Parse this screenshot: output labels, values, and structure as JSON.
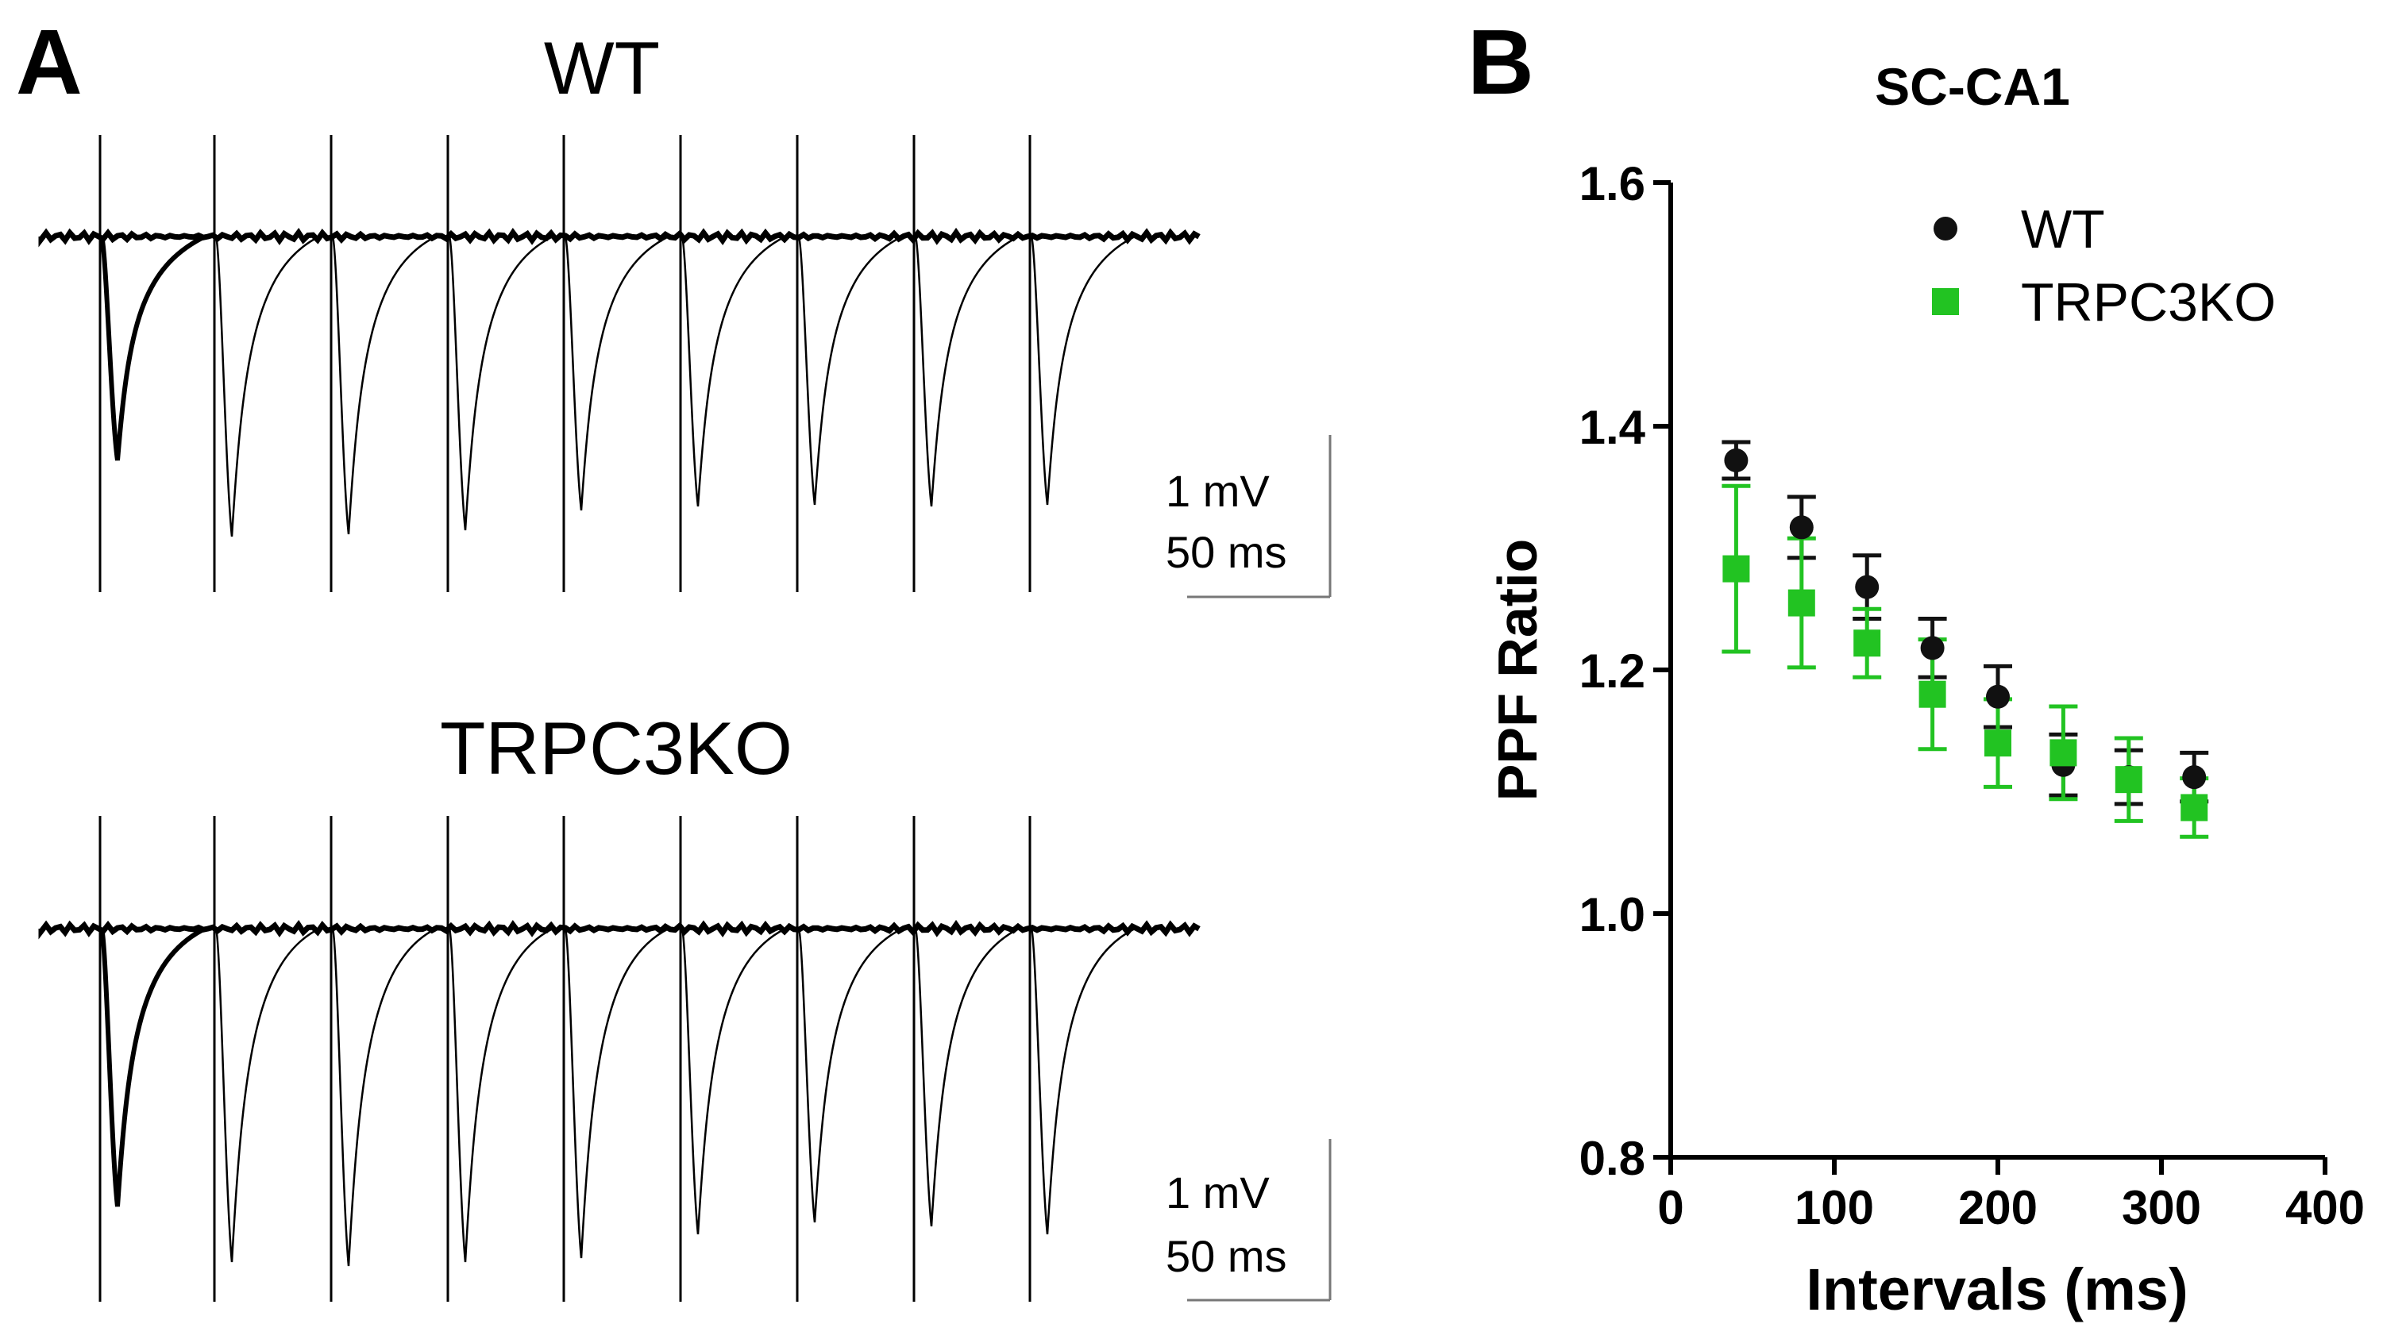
{
  "panelA": {
    "letter": "A",
    "traces": [
      {
        "title": "WT",
        "scalebar": {
          "amplitude": "1 mV",
          "time": "50 ms"
        }
      },
      {
        "title": "TRPC3KO",
        "scalebar": {
          "amplitude": "1 mV",
          "time": "50 ms"
        }
      }
    ]
  },
  "panelB": {
    "letter": "B"
  },
  "colors": {
    "wt": "#111111",
    "ko": "#22c322"
  },
  "chart_data": {
    "type": "scatter",
    "title": "SC-CA1",
    "xlabel": "Intervals (ms)",
    "ylabel": "PPF Ratio",
    "xlim": [
      0,
      400
    ],
    "ylim": [
      0.8,
      1.6
    ],
    "xticks": [
      "0",
      "100",
      "200",
      "300",
      "400"
    ],
    "yticks": [
      "0.8",
      "1.0",
      "1.2",
      "1.4",
      "1.6"
    ],
    "legend_position": "top-right",
    "series": [
      {
        "name": "WT",
        "x": [
          40,
          80,
          120,
          160,
          200,
          240,
          280,
          320
        ],
        "y": [
          1.372,
          1.317,
          1.268,
          1.218,
          1.178,
          1.122,
          1.112,
          1.112
        ],
        "err": [
          0.015,
          0.025,
          0.026,
          0.024,
          0.025,
          0.025,
          0.022,
          0.02
        ]
      },
      {
        "name": "TRPC3KO",
        "x": [
          40,
          80,
          120,
          160,
          200,
          240,
          280,
          320
        ],
        "y": [
          1.283,
          1.255,
          1.222,
          1.18,
          1.14,
          1.132,
          1.11,
          1.087
        ],
        "err": [
          0.068,
          0.053,
          0.028,
          0.045,
          0.036,
          0.038,
          0.034,
          0.024
        ]
      }
    ]
  }
}
